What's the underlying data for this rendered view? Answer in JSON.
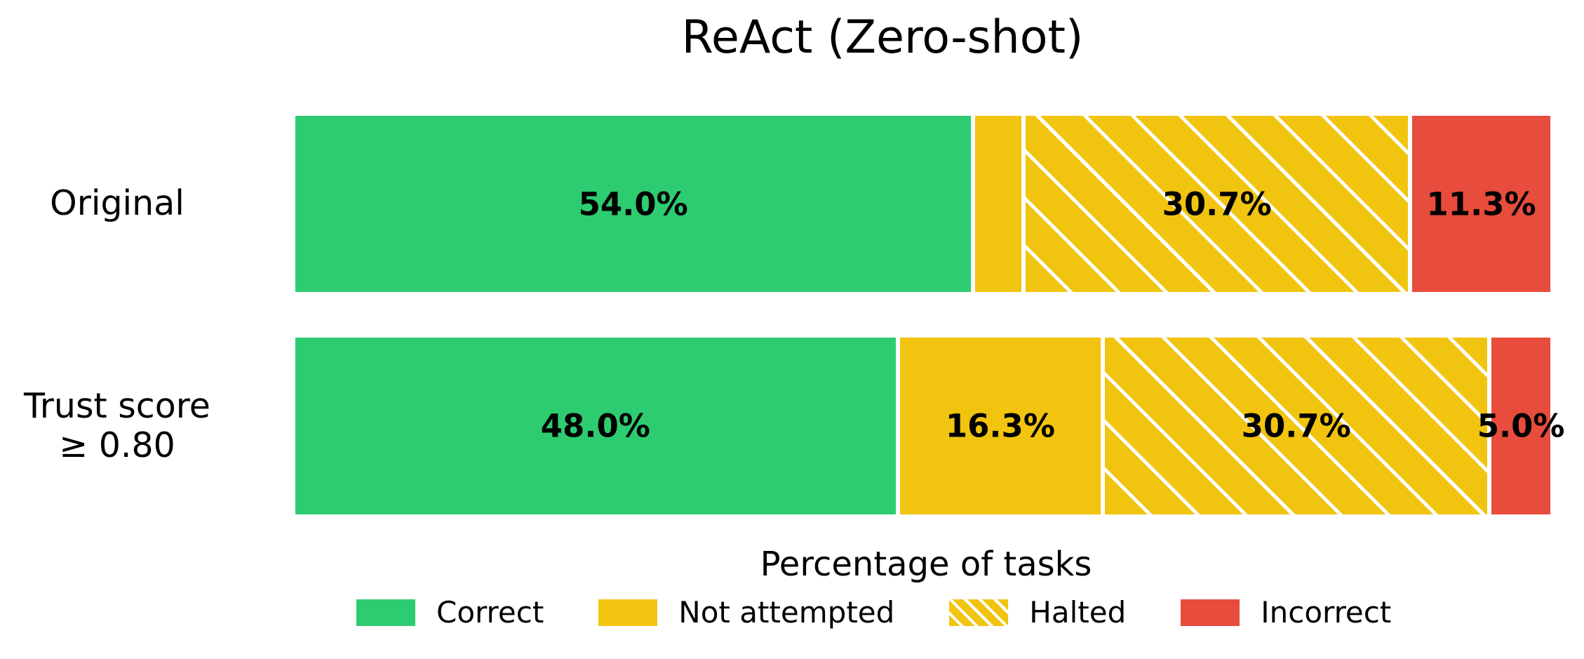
{
  "chart_data": {
    "type": "bar",
    "orientation": "horizontal",
    "stacked": true,
    "title": "ReAct (Zero-shot)",
    "xlabel": "Percentage of tasks",
    "xlim": [
      0,
      100
    ],
    "grid": false,
    "legend_position": "bottom",
    "categories": [
      "Original",
      "Trust score\n≥ 0.80"
    ],
    "series": [
      {
        "name": "Correct",
        "color": "#2ecc71",
        "hatched": false,
        "values": [
          54.0,
          48.0
        ],
        "labels": [
          "54.0%",
          "48.0%"
        ]
      },
      {
        "name": "Not attempted",
        "color": "#f1c40f",
        "hatched": false,
        "values": [
          4.0,
          16.3
        ],
        "labels": [
          "",
          "16.3%"
        ]
      },
      {
        "name": "Halted",
        "color": "#f1c40f",
        "hatched": true,
        "values": [
          30.7,
          30.7
        ],
        "labels": [
          "30.7%",
          "30.7%"
        ]
      },
      {
        "name": "Incorrect",
        "color": "#e74c3c",
        "hatched": false,
        "values": [
          11.3,
          5.0
        ],
        "labels": [
          "11.3%",
          "5.0%"
        ]
      }
    ],
    "legend": [
      {
        "label": "Correct",
        "color": "#2ecc71",
        "hatched": false
      },
      {
        "label": "Not attempted",
        "color": "#f1c40f",
        "hatched": false
      },
      {
        "label": "Halted",
        "color": "#f1c40f",
        "hatched": true
      },
      {
        "label": "Incorrect",
        "color": "#e74c3c",
        "hatched": false
      }
    ],
    "hatch_color": "#ffffff",
    "segment_edge_color": "#ffffff",
    "text_color": "#000000"
  }
}
